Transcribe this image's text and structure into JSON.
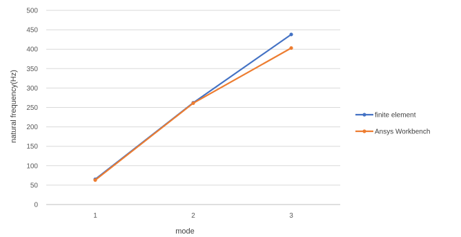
{
  "chart_data": {
    "type": "line",
    "x": [
      "1",
      "2",
      "3"
    ],
    "xlabel": "mode",
    "ylabel": "natural frequency(Hz)",
    "ylim": [
      0,
      500
    ],
    "yticks": [
      0,
      50,
      100,
      150,
      200,
      250,
      300,
      350,
      400,
      450,
      500
    ],
    "grid": true,
    "legend": "right",
    "series": [
      {
        "name": "finite element",
        "color": "#4472c4",
        "values": [
          65,
          262,
          438
        ]
      },
      {
        "name": "Ansys Workbench",
        "color": "#ed7d31",
        "values": [
          63,
          261,
          403
        ]
      }
    ]
  }
}
